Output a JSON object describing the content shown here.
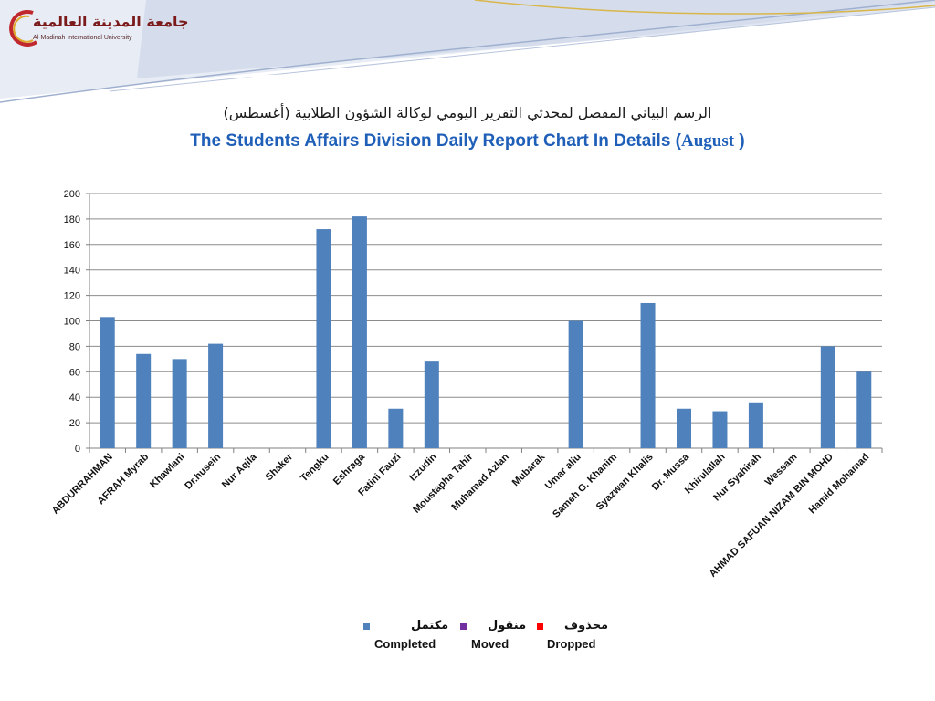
{
  "header": {
    "logo_ar": "جامعة المدينة العالمية",
    "logo_en": "Al-Madinah International University"
  },
  "titles": {
    "arabic": "الرسم البياني المفصل لمحدثي التقرير اليومي لوكالة الشؤون الطلابية (أغسطس)",
    "english_main": "The Students Affairs Division Daily Report Chart In Details (",
    "english_month": "August",
    "english_close": " )"
  },
  "legend": [
    {
      "ar": "مكتمل",
      "en": "Completed",
      "color": "#4f81bd"
    },
    {
      "ar": "منقول",
      "en": "Moved",
      "color": "#7030a0"
    },
    {
      "ar": "محذوف",
      "en": "Dropped",
      "color": "#ff0000"
    }
  ],
  "chart_data": {
    "type": "bar",
    "categories": [
      "ABDURRAHMAN",
      "AFRAH Myrab",
      "Khawlani",
      "Dr.husein",
      "Nur Aqila",
      "Shaker",
      "Tengku",
      "Eshraga",
      "Fatini Fauzi",
      "Izzudin",
      "Moustapha Tahir",
      "Muhamad Azlan",
      "Mubarak",
      "Umar aliu",
      "Sameh G. Khanim",
      "Syazwan Khalis",
      "Dr. Mussa",
      "Khirulallah",
      "Nur Syahirah",
      "Wessam",
      "AHMAD SAFUAN NIZAM BIN MOHD",
      "Hamid  Mohamad"
    ],
    "series": [
      {
        "name": "Completed",
        "color": "#4f81bd",
        "values": [
          103,
          74,
          70,
          82,
          0,
          0,
          172,
          182,
          31,
          68,
          0,
          0,
          0,
          100,
          0,
          114,
          31,
          29,
          36,
          0,
          80,
          60
        ]
      },
      {
        "name": "Moved",
        "color": "#7030a0",
        "values": [
          0,
          0,
          0,
          0,
          0,
          0,
          0,
          0,
          0,
          0,
          0,
          0,
          0,
          0,
          0,
          0,
          0,
          0,
          0,
          0,
          0,
          0
        ]
      },
      {
        "name": "Dropped",
        "color": "#ff0000",
        "values": [
          0,
          0,
          0,
          0,
          0,
          0,
          0,
          0,
          0,
          0,
          0,
          0,
          0,
          0,
          0,
          0,
          0,
          0,
          0,
          0,
          0,
          0
        ]
      }
    ],
    "ylim": [
      0,
      200
    ],
    "yticks": [
      0,
      20,
      40,
      60,
      80,
      100,
      120,
      140,
      160,
      180,
      200
    ],
    "grid": true,
    "legend_position": "bottom"
  }
}
